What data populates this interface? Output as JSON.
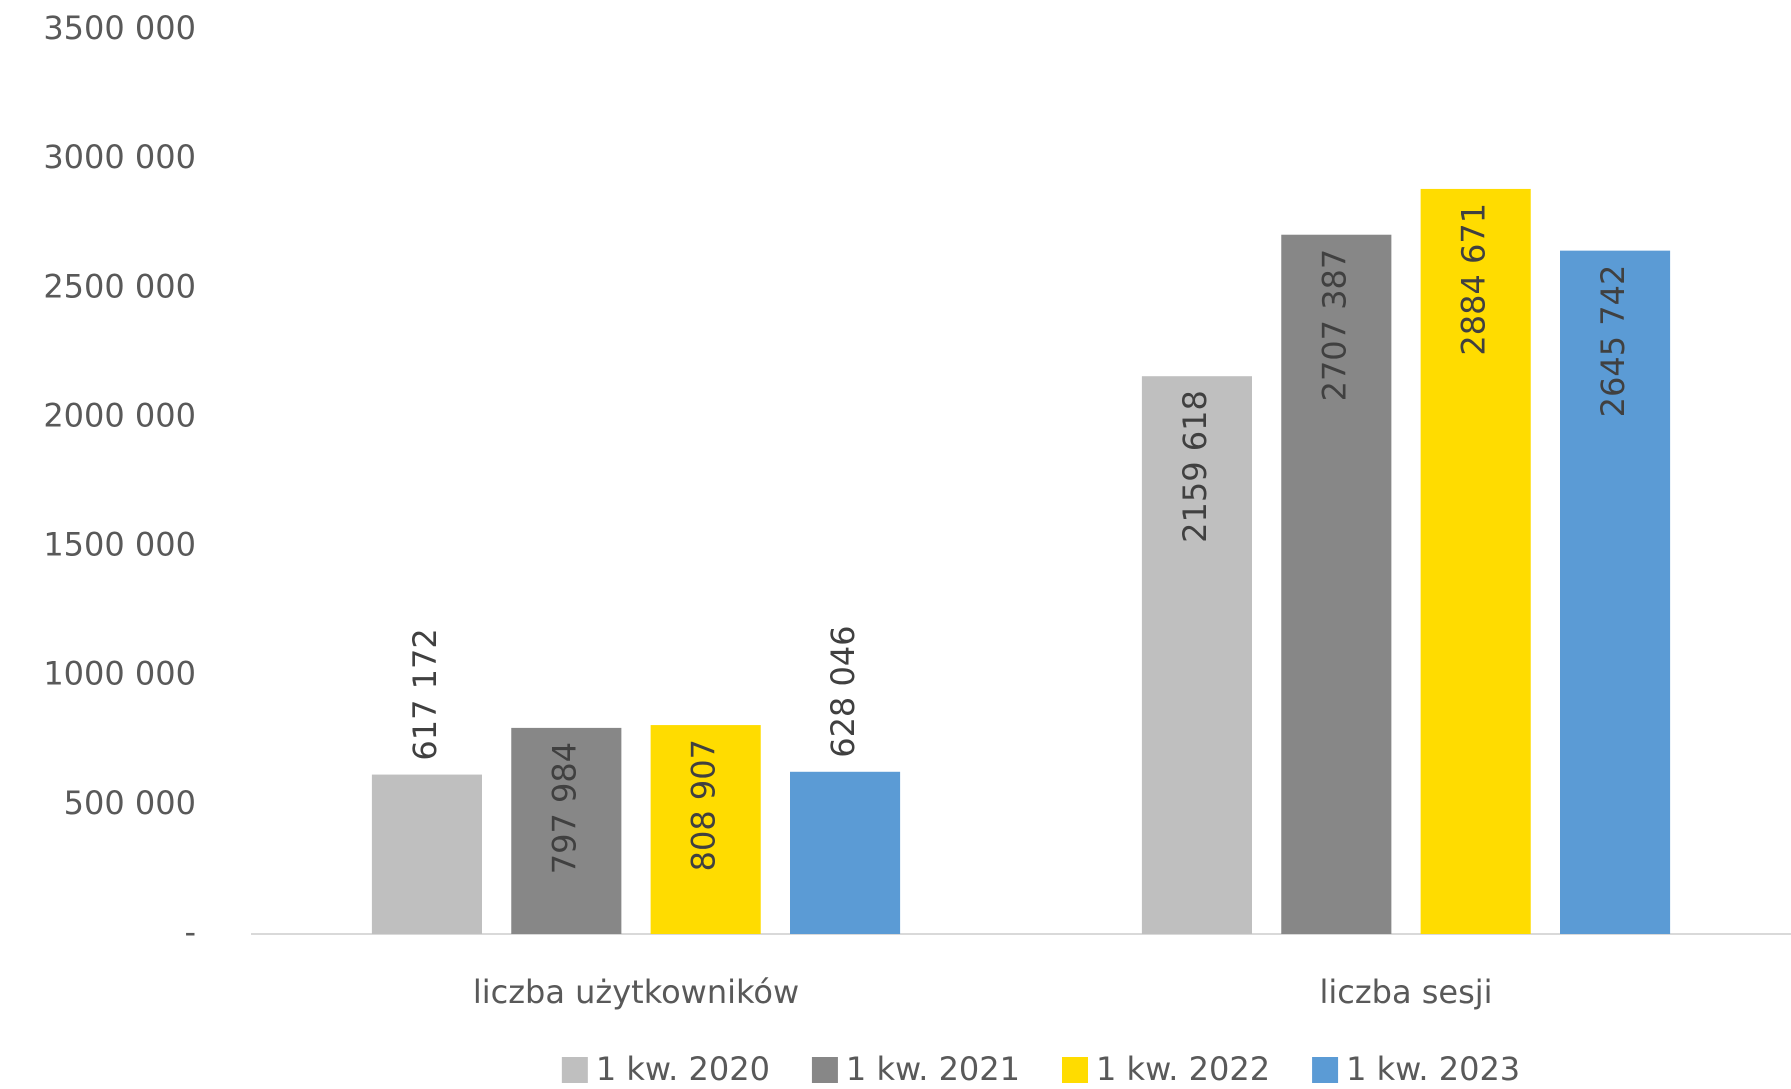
{
  "chart_data": {
    "type": "bar",
    "categories": [
      "liczba użytkowników",
      "liczba sesji"
    ],
    "series": [
      {
        "name": "1 kw. 2020",
        "color": "#bfbfbf",
        "values": [
          617172,
          2159618
        ],
        "value_labels": [
          "617 172",
          "2159 618"
        ]
      },
      {
        "name": "1 kw. 2021",
        "color": "#878787",
        "values": [
          797984,
          2707387
        ],
        "value_labels": [
          "797 984",
          "2707 387"
        ]
      },
      {
        "name": "1 kw. 2022",
        "color": "#ffdc00",
        "values": [
          808907,
          2884671
        ],
        "value_labels": [
          "808 907",
          "2884 671"
        ]
      },
      {
        "name": "1 kw. 2023",
        "color": "#5b9bd5",
        "values": [
          628046,
          2645742
        ],
        "value_labels": [
          "628 046",
          "2645 742"
        ]
      }
    ],
    "ylim": [
      0,
      3500000
    ],
    "yticks": [
      {
        "value": 0,
        "label": "-"
      },
      {
        "value": 500000,
        "label": "500 000"
      },
      {
        "value": 1000000,
        "label": "1000 000"
      },
      {
        "value": 1500000,
        "label": "1500 000"
      },
      {
        "value": 2000000,
        "label": "2000 000"
      },
      {
        "value": 2500000,
        "label": "2500 000"
      },
      {
        "value": 3000000,
        "label": "3000 000"
      },
      {
        "value": 3500000,
        "label": "3500 000"
      }
    ],
    "grid": false,
    "legend": "bottom"
  }
}
